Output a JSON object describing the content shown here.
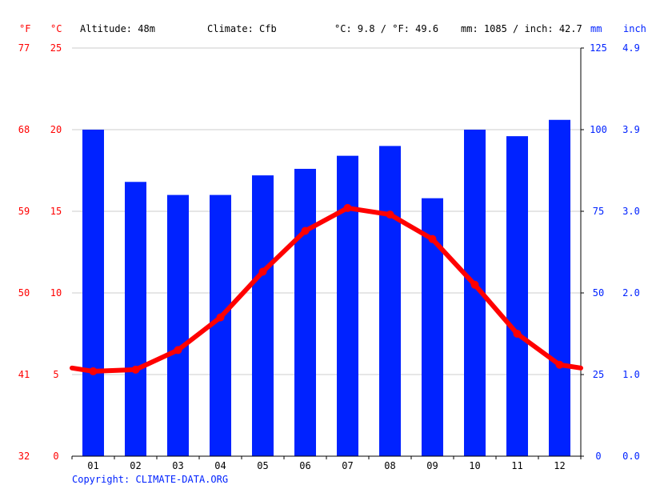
{
  "header": {
    "unit_f": "°F",
    "unit_c": "°C",
    "altitude": "Altitude: 48m",
    "climate": "Climate: Cfb",
    "temp_avg": "°C: 9.8 / °F: 49.6",
    "precip_total": "mm: 1085 / inch: 42.7",
    "unit_mm": "mm",
    "unit_inch": "inch"
  },
  "credit": "Copyright: CLIMATE-DATA.ORG",
  "colors": {
    "temp": "#ff0000",
    "precip": "#0022ff",
    "grid": "#cccccc",
    "axis": "#000000"
  },
  "chart_data": {
    "type": "bar",
    "categories": [
      "01",
      "02",
      "03",
      "04",
      "05",
      "06",
      "07",
      "08",
      "09",
      "10",
      "11",
      "12"
    ],
    "series": [
      {
        "type": "bar",
        "axis": "right",
        "unit": "mm",
        "values": [
          100,
          84,
          80,
          80,
          86,
          88,
          92,
          95,
          79,
          100,
          98,
          103
        ]
      },
      {
        "type": "line",
        "axis": "left",
        "unit": "°C",
        "values": [
          5.2,
          5.3,
          6.5,
          8.5,
          11.3,
          13.8,
          15.2,
          14.8,
          13.3,
          10.5,
          7.5,
          5.6
        ],
        "edge_values": [
          5.4,
          5.4
        ]
      }
    ],
    "y_left_c": {
      "ylim": [
        0,
        25
      ],
      "ticks": [
        "0",
        "5",
        "10",
        "15",
        "20",
        "25"
      ]
    },
    "y_left_f": {
      "ticks": [
        "32",
        "41",
        "50",
        "59",
        "68",
        "77"
      ]
    },
    "y_right_mm": {
      "ylim": [
        0,
        125
      ],
      "ticks": [
        "0",
        "25",
        "50",
        "75",
        "100",
        "125"
      ]
    },
    "y_right_inch": {
      "ticks": [
        "0.0",
        "1.0",
        "2.0",
        "3.0",
        "3.9",
        "4.9"
      ]
    },
    "grid": true
  }
}
